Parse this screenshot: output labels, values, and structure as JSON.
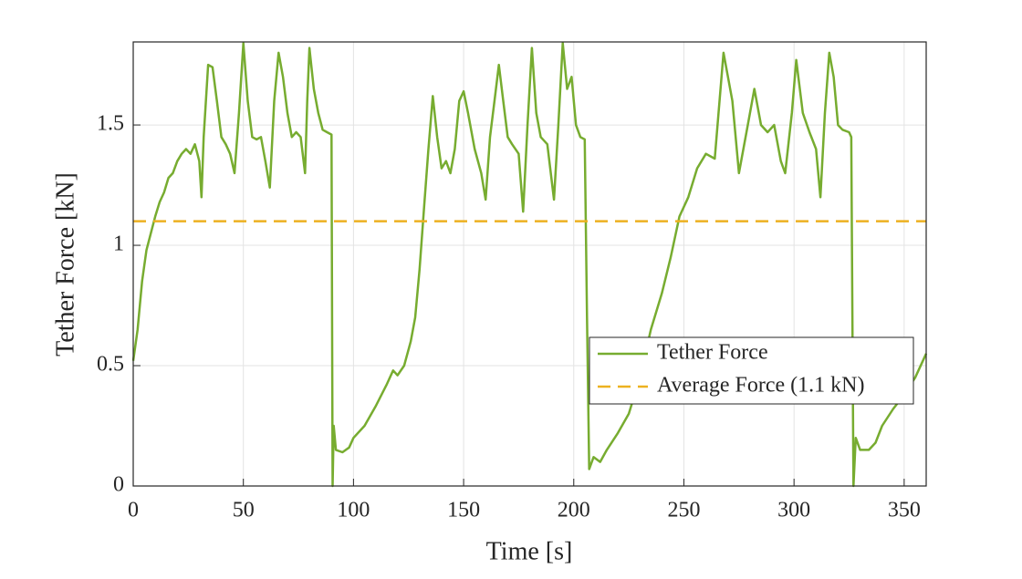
{
  "chart_data": {
    "type": "line",
    "xlabel": "Time [s]",
    "ylabel": "Tether Force [kN]",
    "xlim": [
      0,
      360
    ],
    "ylim": [
      0,
      1.845
    ],
    "xticks": [
      0,
      50,
      100,
      150,
      200,
      250,
      300,
      350
    ],
    "yticks": [
      0,
      0.5,
      1,
      1.5
    ],
    "grid": true,
    "legend": "lower right",
    "x": [
      0,
      2,
      4,
      6,
      8,
      10,
      12,
      14,
      16,
      18,
      20,
      22,
      24,
      26,
      28,
      30,
      31,
      32,
      34,
      36,
      38,
      40,
      42,
      44,
      46,
      48,
      50,
      52,
      54,
      56,
      58,
      60,
      62,
      64,
      66,
      68,
      70,
      72,
      74,
      76,
      78,
      79,
      80,
      82,
      84,
      86,
      88,
      90,
      90.5,
      91,
      92,
      95,
      98,
      100,
      105,
      110,
      115,
      118,
      120,
      123,
      126,
      128,
      130,
      132,
      134,
      136,
      138,
      140,
      142,
      144,
      146,
      148,
      150,
      152,
      155,
      158,
      160,
      162,
      164,
      166,
      168,
      170,
      172,
      175,
      177,
      179,
      181,
      183,
      185,
      188,
      191,
      193,
      195,
      197,
      199,
      201,
      203,
      205,
      206,
      207,
      209,
      212,
      215,
      220,
      225,
      230,
      235,
      240,
      244,
      248,
      252,
      256,
      260,
      264,
      268,
      272,
      275,
      279,
      282,
      285,
      288,
      291,
      294,
      296,
      299,
      301,
      304,
      307,
      310,
      312,
      314,
      316,
      318,
      320,
      322,
      325,
      326,
      327,
      328,
      330,
      334,
      337,
      340,
      345,
      350,
      355,
      360
    ],
    "series": [
      {
        "name": "Tether Force",
        "color": "#77AC30",
        "values": [
          0.52,
          0.65,
          0.85,
          0.98,
          1.05,
          1.12,
          1.18,
          1.22,
          1.28,
          1.3,
          1.35,
          1.38,
          1.4,
          1.38,
          1.42,
          1.35,
          1.2,
          1.45,
          1.75,
          1.74,
          1.6,
          1.45,
          1.42,
          1.38,
          1.3,
          1.55,
          1.84,
          1.6,
          1.45,
          1.44,
          1.45,
          1.35,
          1.24,
          1.6,
          1.8,
          1.7,
          1.55,
          1.45,
          1.47,
          1.45,
          1.3,
          1.6,
          1.82,
          1.65,
          1.55,
          1.48,
          1.47,
          1.46,
          0.0,
          0.25,
          0.15,
          0.14,
          0.16,
          0.2,
          0.25,
          0.33,
          0.42,
          0.48,
          0.46,
          0.5,
          0.6,
          0.7,
          0.9,
          1.15,
          1.4,
          1.62,
          1.45,
          1.32,
          1.35,
          1.3,
          1.4,
          1.6,
          1.64,
          1.55,
          1.4,
          1.3,
          1.19,
          1.45,
          1.6,
          1.75,
          1.6,
          1.45,
          1.42,
          1.38,
          1.14,
          1.5,
          1.82,
          1.55,
          1.45,
          1.42,
          1.19,
          1.5,
          1.84,
          1.65,
          1.7,
          1.5,
          1.45,
          1.44,
          0.7,
          0.07,
          0.12,
          0.1,
          0.15,
          0.22,
          0.3,
          0.45,
          0.65,
          0.8,
          0.95,
          1.12,
          1.2,
          1.32,
          1.38,
          1.36,
          1.8,
          1.6,
          1.3,
          1.5,
          1.65,
          1.5,
          1.47,
          1.5,
          1.35,
          1.3,
          1.55,
          1.77,
          1.55,
          1.47,
          1.4,
          1.2,
          1.55,
          1.8,
          1.7,
          1.5,
          1.48,
          1.47,
          1.45,
          0.0,
          0.2,
          0.15,
          0.15,
          0.18,
          0.25,
          0.32,
          0.38,
          0.45,
          0.55
        ]
      }
    ],
    "reference_line": {
      "name": "Average Force (1.1 kN)",
      "value": 1.1,
      "color": "#EDB120",
      "dashed": true
    }
  }
}
